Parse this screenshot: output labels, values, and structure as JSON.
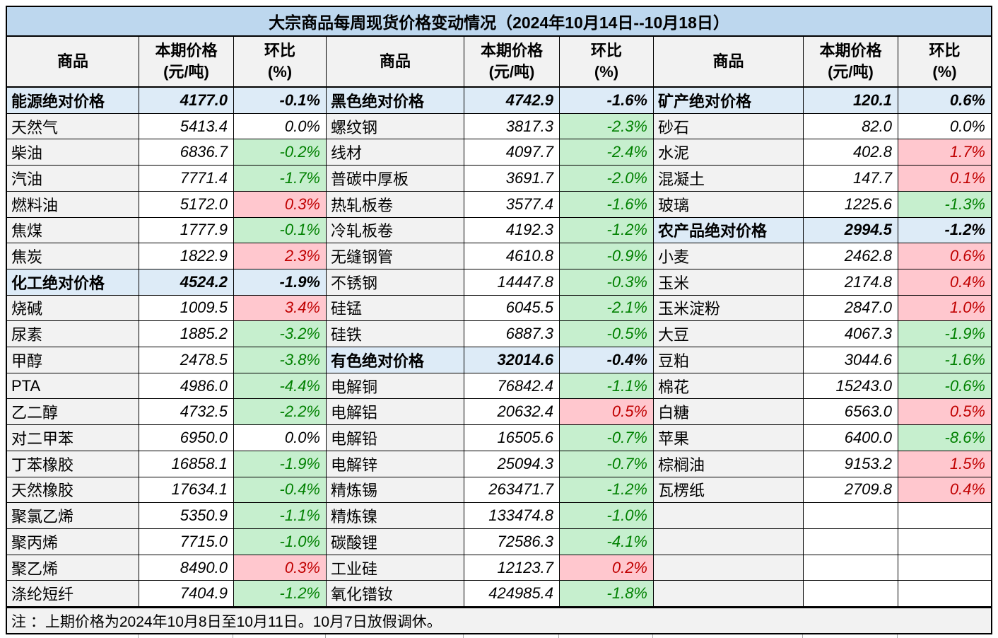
{
  "title": "大宗商品每周现货价格变动情况（2024年10月14日--10月18日）",
  "header": {
    "commodity": "商品",
    "price_line1": "本期价格",
    "price_line2": "(元/吨)",
    "change_line1": "环比",
    "change_line2": "(%)"
  },
  "note": "注 ：上期价格为2024年10月8日至10月11日。10月7日放假调休。",
  "colors": {
    "title_bg": "#BDD7EE",
    "section_row_bg": "#DDEBF7",
    "name_column_bg": "#F2F2F2",
    "header_bg": "#F2F2F2",
    "up_bg": "#FFC7CE",
    "up_text": "#C00000",
    "down_bg": "#C6EFCE",
    "down_text": "#008000",
    "border": "#000000"
  },
  "chart_data": {
    "type": "table",
    "title": "大宗商品每周现货价格变动情况（2024年10月14日--10月18日）",
    "columns": [
      "商品",
      "本期价格(元/吨)",
      "环比(%)"
    ],
    "note": "注 ：上期价格为2024年10月8日至10月11日。10月7日放假调休。",
    "groups": [
      {
        "rows": [
          {
            "name": "能源绝对价格",
            "price": "4177.0",
            "pct": "-0.1%",
            "kind": "section"
          },
          {
            "name": "天然气",
            "price": "5413.4",
            "pct": "0.0%",
            "kind": "item",
            "dir": "flat"
          },
          {
            "name": "柴油",
            "price": "6836.7",
            "pct": "-0.2%",
            "kind": "item",
            "dir": "down"
          },
          {
            "name": "汽油",
            "price": "7771.4",
            "pct": "-1.7%",
            "kind": "item",
            "dir": "down"
          },
          {
            "name": "燃料油",
            "price": "5172.0",
            "pct": "0.3%",
            "kind": "item",
            "dir": "up"
          },
          {
            "name": "焦煤",
            "price": "1777.9",
            "pct": "-0.1%",
            "kind": "item",
            "dir": "down"
          },
          {
            "name": "焦炭",
            "price": "1822.9",
            "pct": "2.3%",
            "kind": "item",
            "dir": "up"
          },
          {
            "name": "化工绝对价格",
            "price": "4524.2",
            "pct": "-1.9%",
            "kind": "section"
          },
          {
            "name": "烧碱",
            "price": "1009.5",
            "pct": "3.4%",
            "kind": "item",
            "dir": "up"
          },
          {
            "name": "尿素",
            "price": "1885.2",
            "pct": "-3.2%",
            "kind": "item",
            "dir": "down"
          },
          {
            "name": "甲醇",
            "price": "2478.5",
            "pct": "-3.8%",
            "kind": "item",
            "dir": "down"
          },
          {
            "name": "PTA",
            "price": "4986.0",
            "pct": "-4.4%",
            "kind": "item",
            "dir": "down"
          },
          {
            "name": "乙二醇",
            "price": "4732.5",
            "pct": "-2.2%",
            "kind": "item",
            "dir": "down"
          },
          {
            "name": "对二甲苯",
            "price": "6950.0",
            "pct": "0.0%",
            "kind": "item",
            "dir": "flat"
          },
          {
            "name": "丁苯橡胶",
            "price": "16858.1",
            "pct": "-1.9%",
            "kind": "item",
            "dir": "down"
          },
          {
            "name": "天然橡胶",
            "price": "17634.1",
            "pct": "-0.4%",
            "kind": "item",
            "dir": "down"
          },
          {
            "name": "聚氯乙烯",
            "price": "5350.9",
            "pct": "-1.1%",
            "kind": "item",
            "dir": "down"
          },
          {
            "name": "聚丙烯",
            "price": "7715.0",
            "pct": "-1.0%",
            "kind": "item",
            "dir": "down"
          },
          {
            "name": "聚乙烯",
            "price": "8490.0",
            "pct": "0.3%",
            "kind": "item",
            "dir": "up"
          },
          {
            "name": "涤纶短纤",
            "price": "7404.9",
            "pct": "-1.2%",
            "kind": "item",
            "dir": "down"
          }
        ]
      },
      {
        "rows": [
          {
            "name": "黑色绝对价格",
            "price": "4742.9",
            "pct": "-1.6%",
            "kind": "section"
          },
          {
            "name": "螺纹钢",
            "price": "3817.3",
            "pct": "-2.3%",
            "kind": "item",
            "dir": "down"
          },
          {
            "name": "线材",
            "price": "4097.7",
            "pct": "-2.4%",
            "kind": "item",
            "dir": "down"
          },
          {
            "name": "普碳中厚板",
            "price": "3691.7",
            "pct": "-2.0%",
            "kind": "item",
            "dir": "down"
          },
          {
            "name": "热轧板卷",
            "price": "3577.4",
            "pct": "-1.6%",
            "kind": "item",
            "dir": "down"
          },
          {
            "name": "冷轧板卷",
            "price": "4192.3",
            "pct": "-1.2%",
            "kind": "item",
            "dir": "down"
          },
          {
            "name": "无缝钢管",
            "price": "4610.8",
            "pct": "-0.9%",
            "kind": "item",
            "dir": "down"
          },
          {
            "name": "不锈钢",
            "price": "14447.8",
            "pct": "-0.3%",
            "kind": "item",
            "dir": "down"
          },
          {
            "name": "硅锰",
            "price": "6045.5",
            "pct": "-2.1%",
            "kind": "item",
            "dir": "down"
          },
          {
            "name": "硅铁",
            "price": "6887.3",
            "pct": "-0.5%",
            "kind": "item",
            "dir": "down"
          },
          {
            "name": "有色绝对价格",
            "price": "32014.6",
            "pct": "-0.4%",
            "kind": "section"
          },
          {
            "name": "电解铜",
            "price": "76842.4",
            "pct": "-1.1%",
            "kind": "item",
            "dir": "down"
          },
          {
            "name": "电解铝",
            "price": "20632.4",
            "pct": "0.5%",
            "kind": "item",
            "dir": "up"
          },
          {
            "name": "电解铅",
            "price": "16505.6",
            "pct": "-0.7%",
            "kind": "item",
            "dir": "down"
          },
          {
            "name": "电解锌",
            "price": "25094.3",
            "pct": "-0.7%",
            "kind": "item",
            "dir": "down"
          },
          {
            "name": "精炼锡",
            "price": "263471.7",
            "pct": "-1.2%",
            "kind": "item",
            "dir": "down"
          },
          {
            "name": "精炼镍",
            "price": "133474.8",
            "pct": "-1.0%",
            "kind": "item",
            "dir": "down"
          },
          {
            "name": "碳酸锂",
            "price": "72586.3",
            "pct": "-4.1%",
            "kind": "item",
            "dir": "down"
          },
          {
            "name": "工业硅",
            "price": "12123.7",
            "pct": "0.2%",
            "kind": "item",
            "dir": "up"
          },
          {
            "name": "氧化镨钕",
            "price": "424985.4",
            "pct": "-1.8%",
            "kind": "item",
            "dir": "down"
          }
        ]
      },
      {
        "rows": [
          {
            "name": "矿产绝对价格",
            "price": "120.1",
            "pct": "0.6%",
            "kind": "section"
          },
          {
            "name": "砂石",
            "price": "82.0",
            "pct": "0.0%",
            "kind": "item",
            "dir": "flat"
          },
          {
            "name": "水泥",
            "price": "402.8",
            "pct": "1.7%",
            "kind": "item",
            "dir": "up"
          },
          {
            "name": "混凝土",
            "price": "147.7",
            "pct": "0.1%",
            "kind": "item",
            "dir": "up"
          },
          {
            "name": "玻璃",
            "price": "1225.6",
            "pct": "-1.3%",
            "kind": "item",
            "dir": "down"
          },
          {
            "name": "农产品绝对价格",
            "price": "2994.5",
            "pct": "-1.2%",
            "kind": "section"
          },
          {
            "name": "小麦",
            "price": "2462.8",
            "pct": "0.6%",
            "kind": "item",
            "dir": "up"
          },
          {
            "name": "玉米",
            "price": "2174.8",
            "pct": "0.4%",
            "kind": "item",
            "dir": "up"
          },
          {
            "name": "玉米淀粉",
            "price": "2847.0",
            "pct": "1.0%",
            "kind": "item",
            "dir": "up"
          },
          {
            "name": "大豆",
            "price": "4067.3",
            "pct": "-1.9%",
            "kind": "item",
            "dir": "down"
          },
          {
            "name": "豆粕",
            "price": "3044.6",
            "pct": "-1.6%",
            "kind": "item",
            "dir": "down"
          },
          {
            "name": "棉花",
            "price": "15243.0",
            "pct": "-0.6%",
            "kind": "item",
            "dir": "down"
          },
          {
            "name": "白糖",
            "price": "6563.0",
            "pct": "0.5%",
            "kind": "item",
            "dir": "up"
          },
          {
            "name": "苹果",
            "price": "6400.0",
            "pct": "-8.6%",
            "kind": "item",
            "dir": "down"
          },
          {
            "name": "棕榈油",
            "price": "9153.2",
            "pct": "1.5%",
            "kind": "item",
            "dir": "up"
          },
          {
            "name": "瓦楞纸",
            "price": "2709.8",
            "pct": "0.4%",
            "kind": "item",
            "dir": "up"
          },
          {
            "name": "",
            "price": "",
            "pct": "",
            "kind": "empty"
          },
          {
            "name": "",
            "price": "",
            "pct": "",
            "kind": "empty"
          },
          {
            "name": "",
            "price": "",
            "pct": "",
            "kind": "empty"
          },
          {
            "name": "",
            "price": "",
            "pct": "",
            "kind": "empty"
          }
        ]
      }
    ]
  }
}
